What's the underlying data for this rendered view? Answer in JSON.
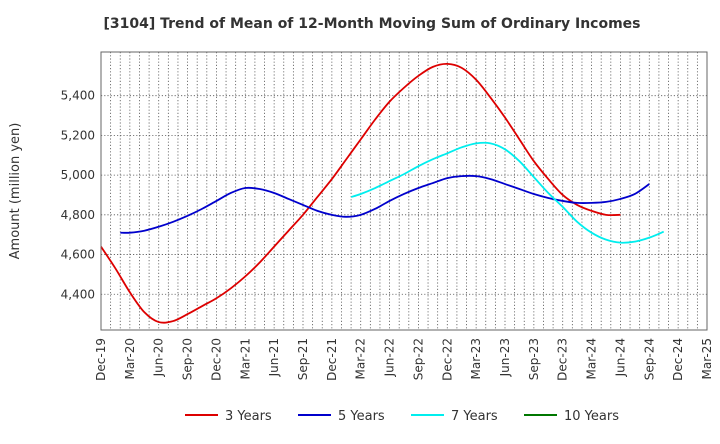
{
  "chart_data": {
    "type": "line",
    "title": "[3104]  Trend of Mean of 12-Month Moving Sum of Ordinary Incomes",
    "ylabel": "Amount (million yen)",
    "xlabel": "",
    "ylim": [
      4220,
      5620
    ],
    "yticks": [
      4400,
      4600,
      4800,
      5000,
      5200,
      5400
    ],
    "ytick_labels": [
      "4,400",
      "4,600",
      "4,800",
      "5,000",
      "5,200",
      "5,400"
    ],
    "x_categories": [
      "Dec-19",
      "Mar-20",
      "Jun-20",
      "Sep-20",
      "Dec-20",
      "Mar-21",
      "Jun-21",
      "Sep-21",
      "Dec-21",
      "Mar-22",
      "Jun-22",
      "Sep-22",
      "Dec-22",
      "Mar-23",
      "Jun-23",
      "Sep-23",
      "Dec-23",
      "Mar-24",
      "Jun-24",
      "Sep-24",
      "Dec-24",
      "Mar-25"
    ],
    "grid": true,
    "legend_position": "bottom",
    "series": [
      {
        "name": "3 Years",
        "color": "#dd0000",
        "x": [
          0,
          0.5,
          1,
          1.5,
          2,
          2.5,
          3,
          3.5,
          4,
          4.5,
          5,
          5.5,
          6,
          6.5,
          7,
          7.5,
          8,
          8.5,
          9,
          9.5,
          10,
          10.5,
          11,
          11.5,
          12,
          12.5,
          13,
          13.5,
          14,
          14.5,
          15,
          15.5,
          16,
          16.5,
          17,
          17.5,
          18,
          18.5,
          19,
          19.5,
          20
        ],
        "values": [
          4640,
          4530,
          4410,
          4310,
          4260,
          4265,
          4300,
          4340,
          4380,
          4430,
          4490,
          4560,
          4640,
          4720,
          4800,
          4890,
          4980,
          5080,
          5180,
          5280,
          5370,
          5440,
          5500,
          5545,
          5560,
          5540,
          5480,
          5390,
          5290,
          5180,
          5070,
          4980,
          4900,
          4850,
          4820,
          4800,
          4800,
          null,
          null,
          null,
          null
        ]
      },
      {
        "name": "5 Years",
        "color": "#0000cc",
        "x": [
          0.67,
          1,
          1.5,
          2,
          2.5,
          3,
          3.5,
          4,
          4.5,
          5,
          5.5,
          6,
          6.5,
          7,
          7.5,
          8,
          8.5,
          9,
          9.5,
          10,
          10.5,
          11,
          11.5,
          12,
          12.5,
          13,
          13.5,
          14,
          14.5,
          15,
          15.5,
          16,
          16.5,
          17,
          17.5,
          18,
          18.5,
          19,
          19.5,
          20
        ],
        "values": [
          4710,
          4710,
          4720,
          4740,
          4765,
          4795,
          4830,
          4870,
          4910,
          4935,
          4930,
          4910,
          4880,
          4850,
          4820,
          4800,
          4790,
          4800,
          4830,
          4870,
          4905,
          4935,
          4960,
          4985,
          4995,
          4995,
          4980,
          4955,
          4930,
          4905,
          4885,
          4870,
          4860,
          4860,
          4865,
          4880,
          4905,
          4955,
          null,
          null
        ]
      },
      {
        "name": "7 Years",
        "color": "#00eeee",
        "x": [
          8.67,
          9,
          9.5,
          10,
          10.5,
          11,
          11.5,
          12,
          12.5,
          13,
          13.5,
          14,
          14.5,
          15,
          15.5,
          16,
          16.5,
          17,
          17.5,
          18,
          18.5,
          19,
          19.5,
          20
        ],
        "values": [
          4890,
          4905,
          4935,
          4970,
          5005,
          5045,
          5080,
          5110,
          5140,
          5160,
          5160,
          5130,
          5070,
          4990,
          4910,
          4840,
          4765,
          4710,
          4675,
          4660,
          4665,
          4685,
          4715,
          null
        ]
      },
      {
        "name": "10 Years",
        "color": "#007700",
        "x": [],
        "values": []
      }
    ]
  }
}
